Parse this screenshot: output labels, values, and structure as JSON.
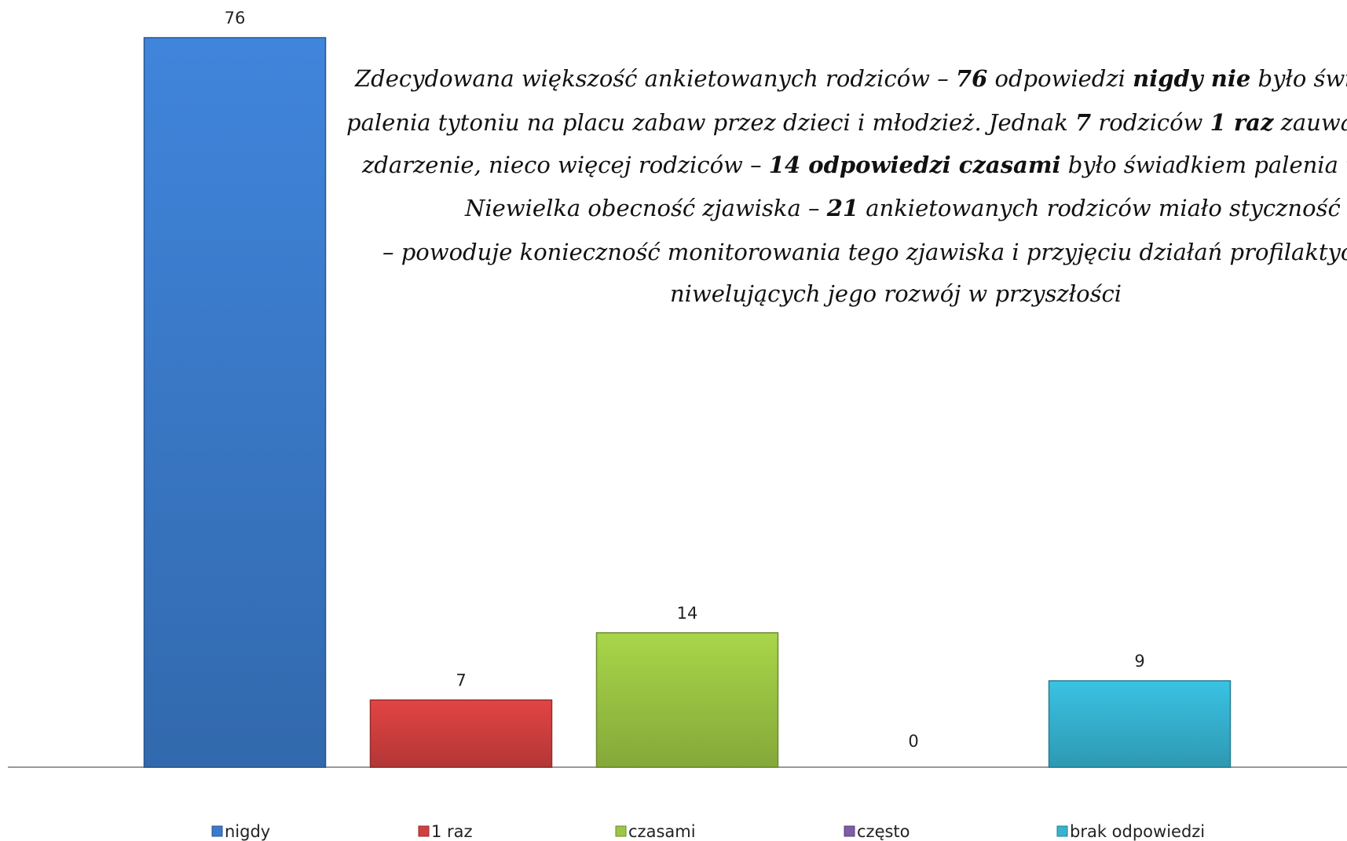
{
  "chart_data": {
    "type": "bar",
    "categories": [
      "nigdy",
      "1 raz",
      "czasami",
      "często",
      "brak odpowiedzi"
    ],
    "series": [
      {
        "values": [
          76,
          7,
          14,
          0,
          9
        ],
        "colors": [
          "#3b7bcc",
          "#d23f3f",
          "#9cc644",
          "#7d5ca8",
          "#36b4d2"
        ]
      }
    ],
    "legend": "bottom",
    "annotation": [
      [
        {
          "text": "Zdecydowana większość ankietowanych rodziców – "
        },
        {
          "text": "76",
          "bold": true
        },
        {
          "text": " odpowiedzi "
        },
        {
          "text": "nigdy nie",
          "bold": true
        },
        {
          "text": " było świ"
        }
      ],
      [
        {
          "text": "palenia tytoniu na placu zabaw przez dzieci i młodzież. Jednak "
        },
        {
          "text": "7",
          "bold": true
        },
        {
          "text": " rodziców "
        },
        {
          "text": "1 raz",
          "bold": true
        },
        {
          "text": " zauważ"
        }
      ],
      [
        {
          "text": "zdarzenie, nieco więcej rodziców – "
        },
        {
          "text": "14 odpowiedzi czasami",
          "bold": true
        },
        {
          "text": " było świadkiem palenia t"
        }
      ],
      [
        {
          "text": "Niewielka obecność zjawiska – "
        },
        {
          "text": "21",
          "bold": true
        },
        {
          "text": " ankietowanych rodziców miało styczność"
        }
      ],
      [
        {
          "text": "– powoduje konieczność monitorowania tego zjawiska i przyjęciu działań profilaktycz"
        }
      ],
      [
        {
          "text": "niwelujących jego rozwój w przyszłości"
        }
      ]
    ]
  }
}
